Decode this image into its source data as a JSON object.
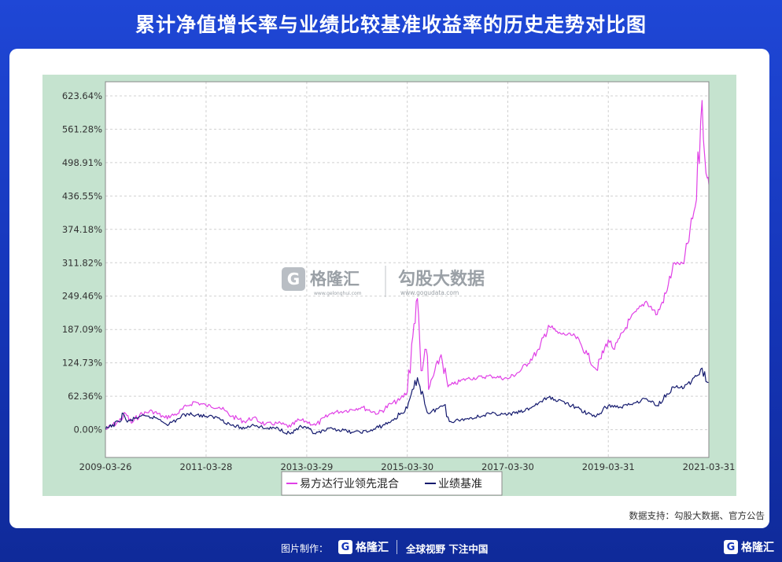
{
  "title": "累计净值增长率与业绩比较基准收益率的历史走势对比图",
  "source": "数据支持：勾股大数据、官方公告",
  "footer": {
    "credit": "图片制作：",
    "brand": "格隆汇",
    "slogan": "全球视野 下注中国",
    "brand_right": "格隆汇"
  },
  "watermark": {
    "brand_a": "格隆汇",
    "url_a": "www.gelonghui.com",
    "brand_b": "勾股大数据",
    "url_b": "www.gogudata.com"
  },
  "colors": {
    "fund": "#e040e6",
    "benchmark": "#141a6e",
    "plot_frame": "#c5e3cf",
    "grid": "#d0d0d0"
  },
  "chart_data": {
    "type": "line",
    "x_tick_labels": [
      "2009-03-26",
      "2011-03-28",
      "2013-03-29",
      "2015-03-30",
      "2017-03-30",
      "2019-03-31",
      "2021-03-31"
    ],
    "y_tick_labels": [
      "0.00%",
      "62.36%",
      "124.73%",
      "187.09%",
      "249.46%",
      "311.82%",
      "374.18%",
      "436.55%",
      "498.91%",
      "561.28%",
      "623.64%"
    ],
    "y_ticks": [
      0,
      62.36,
      124.73,
      187.09,
      249.46,
      311.82,
      374.18,
      436.55,
      498.91,
      561.28,
      623.64
    ],
    "xlim": [
      "2009-03-26",
      "2021-03-31"
    ],
    "ylim": [
      -52,
      650
    ],
    "grid": true,
    "legend_position": "bottom",
    "series": [
      {
        "name": "易方达行业领先混合",
        "points": [
          [
            "2009-03-26",
            0
          ],
          [
            "2009-07-01",
            15
          ],
          [
            "2009-08-20",
            30
          ],
          [
            "2009-10-01",
            12
          ],
          [
            "2009-12-01",
            28
          ],
          [
            "2010-03-01",
            35
          ],
          [
            "2010-06-01",
            22
          ],
          [
            "2010-09-01",
            30
          ],
          [
            "2010-11-15",
            45
          ],
          [
            "2011-01-01",
            52
          ],
          [
            "2011-03-28",
            45
          ],
          [
            "2011-07-01",
            42
          ],
          [
            "2011-10-01",
            25
          ],
          [
            "2012-01-01",
            15
          ],
          [
            "2012-03-01",
            22
          ],
          [
            "2012-06-01",
            10
          ],
          [
            "2012-09-01",
            12
          ],
          [
            "2012-12-01",
            5
          ],
          [
            "2013-02-01",
            18
          ],
          [
            "2013-03-29",
            15
          ],
          [
            "2013-06-01",
            8
          ],
          [
            "2013-10-01",
            32
          ],
          [
            "2014-01-01",
            35
          ],
          [
            "2014-05-01",
            42
          ],
          [
            "2014-09-01",
            30
          ],
          [
            "2014-12-01",
            48
          ],
          [
            "2015-02-01",
            55
          ],
          [
            "2015-03-30",
            70
          ],
          [
            "2015-05-01",
            160
          ],
          [
            "2015-06-12",
            245
          ],
          [
            "2015-07-08",
            110
          ],
          [
            "2015-08-15",
            150
          ],
          [
            "2015-09-01",
            75
          ],
          [
            "2015-12-01",
            140
          ],
          [
            "2016-01-20",
            80
          ],
          [
            "2016-03-01",
            85
          ],
          [
            "2016-06-01",
            95
          ],
          [
            "2016-12-01",
            100
          ],
          [
            "2017-03-30",
            95
          ],
          [
            "2017-07-01",
            110
          ],
          [
            "2017-11-15",
            150
          ],
          [
            "2018-01-20",
            195
          ],
          [
            "2018-04-01",
            180
          ],
          [
            "2018-08-01",
            175
          ],
          [
            "2018-10-30",
            140
          ],
          [
            "2019-01-03",
            112
          ],
          [
            "2019-03-31",
            168
          ],
          [
            "2019-05-15",
            150
          ],
          [
            "2019-09-01",
            205
          ],
          [
            "2019-12-31",
            240
          ],
          [
            "2020-03-20",
            215
          ],
          [
            "2020-06-01",
            260
          ],
          [
            "2020-07-15",
            310
          ],
          [
            "2020-09-30",
            310
          ],
          [
            "2020-12-31",
            430
          ],
          [
            "2021-02-10",
            615
          ],
          [
            "2021-03-01",
            510
          ],
          [
            "2021-03-20",
            470
          ],
          [
            "2021-03-31",
            458
          ]
        ]
      },
      {
        "name": "业绩基准",
        "points": [
          [
            "2009-03-26",
            0
          ],
          [
            "2009-07-01",
            15
          ],
          [
            "2009-08-04",
            30
          ],
          [
            "2009-09-01",
            14
          ],
          [
            "2009-12-01",
            25
          ],
          [
            "2010-04-01",
            22
          ],
          [
            "2010-07-01",
            10
          ],
          [
            "2010-11-08",
            30
          ],
          [
            "2011-03-28",
            25
          ],
          [
            "2011-07-01",
            22
          ],
          [
            "2011-10-01",
            8
          ],
          [
            "2012-01-01",
            2
          ],
          [
            "2012-03-01",
            10
          ],
          [
            "2012-06-01",
            2
          ],
          [
            "2012-09-01",
            3
          ],
          [
            "2012-12-01",
            -8
          ],
          [
            "2013-02-01",
            5
          ],
          [
            "2013-03-29",
            2
          ],
          [
            "2013-06-01",
            -8
          ],
          [
            "2013-10-01",
            2
          ],
          [
            "2014-03-01",
            -5
          ],
          [
            "2014-07-01",
            -3
          ],
          [
            "2014-12-01",
            15
          ],
          [
            "2015-03-30",
            40
          ],
          [
            "2015-06-12",
            97
          ],
          [
            "2015-08-31",
            30
          ],
          [
            "2015-12-31",
            47
          ],
          [
            "2016-01-31",
            15
          ],
          [
            "2016-06-01",
            20
          ],
          [
            "2016-12-01",
            30
          ],
          [
            "2017-03-30",
            28
          ],
          [
            "2017-08-01",
            35
          ],
          [
            "2018-01-20",
            60
          ],
          [
            "2018-06-01",
            50
          ],
          [
            "2018-10-30",
            30
          ],
          [
            "2019-01-03",
            25
          ],
          [
            "2019-03-31",
            45
          ],
          [
            "2019-07-01",
            42
          ],
          [
            "2019-12-31",
            58
          ],
          [
            "2020-03-20",
            45
          ],
          [
            "2020-07-15",
            80
          ],
          [
            "2020-10-01",
            78
          ],
          [
            "2021-01-01",
            100
          ],
          [
            "2021-02-10",
            115
          ],
          [
            "2021-03-10",
            90
          ],
          [
            "2021-03-31",
            88
          ]
        ]
      }
    ]
  }
}
